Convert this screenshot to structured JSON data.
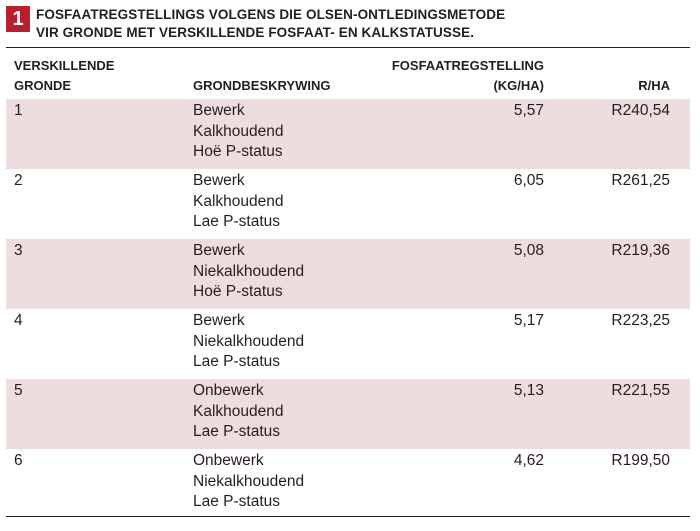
{
  "title": {
    "badge": "1",
    "line1": "FOSFAATREGSTELLINGS VOLGENS DIE OLSEN-ONTLEDINGSMETODE",
    "line2": "VIR GRONDE MET VERSKILLENDE FOSFAAT- EN KALKSTATUSSE."
  },
  "headers": {
    "col1_line1": "VERSKILLENDE",
    "col1_line2": "GRONDE",
    "col2": "GRONDBESKRYWING",
    "col3_line1": "FOSFAATREGSTELLING",
    "col3_line2": "(KG/HA)",
    "col4": "R/HA"
  },
  "rows": [
    {
      "id": "1",
      "desc": [
        "Bewerk",
        "Kalkhoudend",
        "Hoë P-status"
      ],
      "fosfaat": "5,57",
      "rha": "R240,54"
    },
    {
      "id": "2",
      "desc": [
        "Bewerk",
        "Kalkhoudend",
        "Lae P-status"
      ],
      "fosfaat": "6,05",
      "rha": "R261,25"
    },
    {
      "id": "3",
      "desc": [
        "Bewerk",
        "Niekalkhoudend",
        "Hoë P-status"
      ],
      "fosfaat": "5,08",
      "rha": "R219,36"
    },
    {
      "id": "4",
      "desc": [
        "Bewerk",
        "Niekalkhoudend",
        "Lae P-status"
      ],
      "fosfaat": "5,17",
      "rha": "R223,25"
    },
    {
      "id": "5",
      "desc": [
        "Onbewerk",
        "Kalkhoudend",
        "Lae P-status"
      ],
      "fosfaat": "5,13",
      "rha": "R221,55"
    },
    {
      "id": "6",
      "desc": [
        "Onbewerk",
        "Niekalkhoudend",
        "Lae P-status"
      ],
      "fosfaat": "4,62",
      "rha": "R199,50"
    }
  ],
  "colors": {
    "badge": "#b5202e",
    "row_shade": "#eedddf",
    "text": "#231f20"
  }
}
